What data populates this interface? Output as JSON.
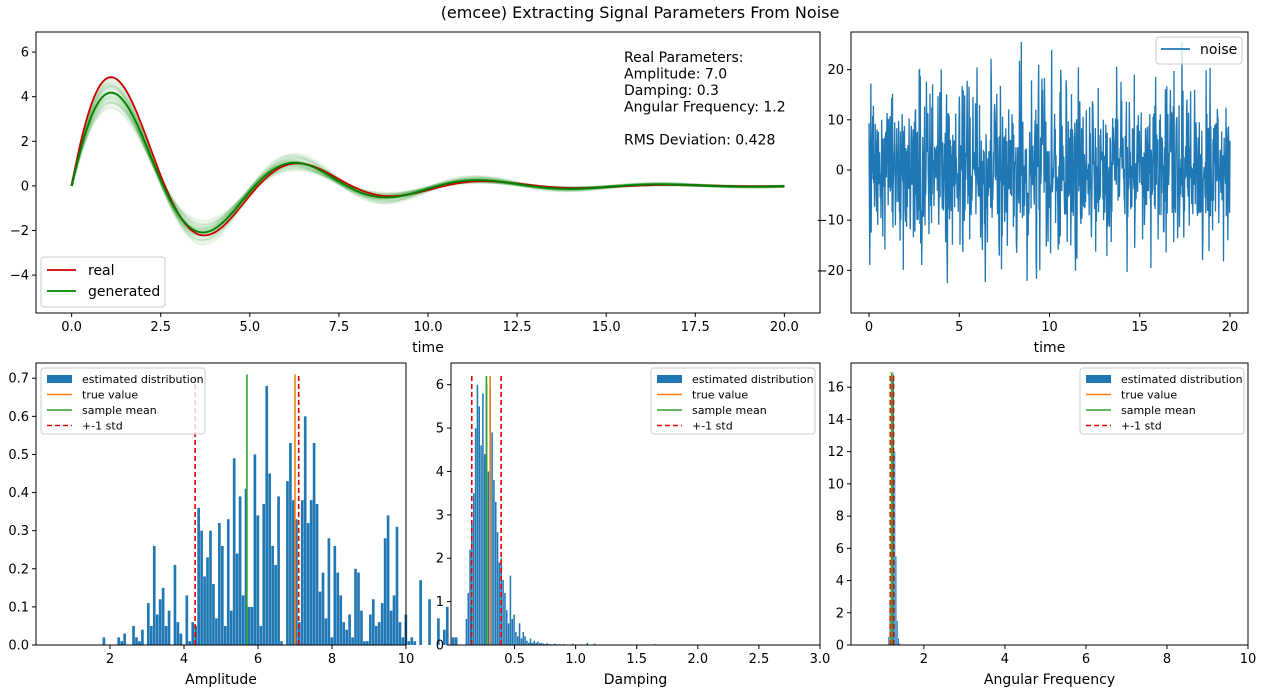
{
  "figure": {
    "suptitle": "(emcee) Extracting Signal Parameters From Noise",
    "colors": {
      "blue": "#1f77b4",
      "orange": "#ff7f0e",
      "green_c2": "#2ca02c",
      "red": "#d62728",
      "real_line": "#cc0000",
      "generated_line": "#008000",
      "std_line": "#e00000"
    }
  },
  "chart_data": [
    {
      "type": "line",
      "xlabel": "time",
      "ylabel": "",
      "xlim": [
        -1,
        21
      ],
      "ylim": [
        -5.7,
        6.9
      ],
      "xticks": [
        0,
        2.5,
        5,
        7.5,
        10,
        12.5,
        15,
        17.5,
        20
      ],
      "xtick_labels": [
        "0.0",
        "2.5",
        "5.0",
        "7.5",
        "10.0",
        "12.5",
        "15.0",
        "17.5",
        "20.0"
      ],
      "yticks": [
        -4,
        -2,
        0,
        2,
        4,
        6
      ],
      "ytick_labels": [
        "−4",
        "−2",
        "0",
        "2",
        "4",
        "6"
      ],
      "legend_position": "lower-left",
      "series": [
        {
          "name": "real",
          "model": "damped_sine",
          "amplitude": 7.0,
          "damping": 0.3,
          "angular_frequency": 1.2,
          "color": "#cc0000"
        },
        {
          "name": "generated",
          "model": "damped_sine",
          "amplitude": 5.78,
          "damping": 0.27,
          "angular_frequency": 1.22,
          "color": "#008000"
        }
      ],
      "posterior_sample_band": {
        "color": "#008000",
        "sample_count": 40
      },
      "annotation_lines": [
        "Real Parameters:",
        "Amplitude: 7.0",
        "Damping: 0.3",
        "Angular Frequency: 1.2",
        "",
        "RMS Deviation: 0.428"
      ]
    },
    {
      "type": "line",
      "xlabel": "time",
      "ylabel": "",
      "xlim": [
        -1,
        21
      ],
      "ylim": [
        -28.5,
        27.5
      ],
      "xticks": [
        0,
        5,
        10,
        15,
        20
      ],
      "xtick_labels": [
        "0",
        "5",
        "10",
        "15",
        "20"
      ],
      "yticks": [
        -20,
        -10,
        0,
        10,
        20
      ],
      "ytick_labels": [
        "−20",
        "−10",
        "0",
        "10",
        "20"
      ],
      "legend_position": "upper-right",
      "series": [
        {
          "name": "noise",
          "color": "#1f77b4",
          "x_range": [
            0,
            20
          ],
          "approx_std": 8.5,
          "y_range": [
            -26,
            25.5
          ]
        }
      ]
    },
    {
      "type": "bar",
      "xlabel": "Amplitude",
      "ylabel": "",
      "xlim": [
        0,
        10
      ],
      "ylim": [
        0,
        0.74
      ],
      "xticks": [
        2,
        4,
        6,
        8,
        10
      ],
      "xtick_labels": [
        "2",
        "4",
        "6",
        "8",
        "10"
      ],
      "yticks": [
        0,
        0.1,
        0.2,
        0.3,
        0.4,
        0.5,
        0.6,
        0.7
      ],
      "ytick_labels": [
        "0.0",
        "0.1",
        "0.2",
        "0.3",
        "0.4",
        "0.5",
        "0.6",
        "0.7"
      ],
      "legend_position": "upper-left",
      "legend_entries": [
        "estimated distribution",
        "true value",
        "sample mean",
        "+-1 std"
      ],
      "true_value": 7.0,
      "sample_mean": 5.7,
      "std_lines": [
        4.3,
        7.1
      ],
      "marker_height": 0.71,
      "histogram": {
        "x_start": 1.8,
        "bin_width": 0.08,
        "values": [
          0.02,
          0.0,
          0.0,
          0.0,
          0.0,
          0.02,
          0.01,
          0.03,
          0.0,
          0.0,
          0.05,
          0.02,
          0.01,
          0.04,
          0.0,
          0.11,
          0.05,
          0.26,
          0.08,
          0.12,
          0.15,
          0.05,
          0.09,
          0.0,
          0.21,
          0.06,
          0.03,
          0.0,
          0.13,
          0.01,
          0.06,
          0.05,
          0.36,
          0.3,
          0.18,
          0.23,
          0.3,
          0.16,
          0.07,
          0.32,
          0.26,
          0.05,
          0.33,
          0.09,
          0.49,
          0.24,
          0.39,
          0.13,
          0.41,
          0.1,
          0.1,
          0.5,
          0.34,
          0.05,
          0.37,
          0.68,
          0.45,
          0.26,
          0.21,
          0.39,
          0.01,
          0.0,
          0.43,
          0.53,
          0.38,
          0.33,
          0.06,
          0.38,
          0.6,
          0.32,
          0.38,
          0.53,
          0.37,
          0.14,
          0.19,
          0.07,
          0.28,
          0.02,
          0.26,
          0.19,
          0.13,
          0.06,
          0.04,
          0.08,
          0.02,
          0.2,
          0.19,
          0.09,
          0.01,
          0.01,
          0.08,
          0.12,
          0.05,
          0.06,
          0.11,
          0.28,
          0.34,
          0.09,
          0.13,
          0.31,
          0.06,
          0.02,
          0.08,
          0.01,
          0.02,
          0.01,
          0.0,
          0.17,
          0.0,
          0.0,
          0.12,
          0.0,
          0.0,
          0.07,
          0.0,
          0.04,
          0.1,
          0.0,
          0.02,
          0.02,
          0.0,
          0.0,
          0.0,
          0.0,
          0.1
        ]
      }
    },
    {
      "type": "bar",
      "xlabel": "Damping",
      "ylabel": "",
      "xlim": [
        -0.02,
        3.0
      ],
      "ylim": [
        0,
        6.5
      ],
      "xticks": [
        0.5,
        1.0,
        1.5,
        2.0,
        2.5,
        3.0
      ],
      "xtick_labels": [
        "0.5",
        "1.0",
        "1.5",
        "2.0",
        "2.5",
        "3.0"
      ],
      "yticks": [
        0,
        1,
        2,
        3,
        4,
        5,
        6
      ],
      "ytick_labels": [
        "0",
        "1",
        "2",
        "3",
        "4",
        "5",
        "6"
      ],
      "legend_position": "upper-right",
      "legend_entries": [
        "estimated distribution",
        "true value",
        "sample mean",
        "+-1 std"
      ],
      "true_value": 0.3,
      "sample_mean": 0.27,
      "std_lines": [
        0.15,
        0.39
      ],
      "marker_height": 6.2,
      "histogram": {
        "x_start": 0.1,
        "bin_width": 0.015,
        "values": [
          0.6,
          1.2,
          2.2,
          2.8,
          3.5,
          5.0,
          6.0,
          5.5,
          4.6,
          5.8,
          4.4,
          6.0,
          4.0,
          5.9,
          4.9,
          3.8,
          3.3,
          2.6,
          1.9,
          2.0,
          1.5,
          1.2,
          0.8,
          0.5,
          1.6,
          0.6,
          0.7,
          0.3,
          0.2,
          0.5,
          0.15,
          0.3,
          0.2,
          0.1,
          0.05,
          0.15,
          0.05,
          0.1,
          0.05,
          0.08,
          0.04,
          0.05,
          0.03,
          0.02,
          0.04,
          0.02,
          0.02,
          0.0,
          0.03,
          0.02,
          0.0,
          0.02,
          0.01,
          0.02,
          0.0,
          0.01,
          0.0,
          0.0,
          0.03,
          0.0,
          0.0,
          0.0,
          0.0,
          0.0,
          0.0,
          0.0,
          0.05,
          0.0,
          0.0,
          0.0,
          0.03,
          0.0,
          0.0,
          0.0,
          0.0,
          0.0,
          0.0,
          0.0,
          0.0,
          0.0,
          0.0,
          0.0,
          0.0,
          0.0,
          0.0,
          0.0,
          0.0,
          0.0,
          0.0,
          0.0,
          0.0,
          0.0,
          0.0,
          0.0,
          0.0,
          0.0,
          0.0,
          0.0,
          0.0,
          0.0,
          0.0,
          0.0,
          0.0,
          0.02
        ]
      }
    },
    {
      "type": "bar",
      "xlabel": "Angular Frequency",
      "ylabel": "",
      "xlim": [
        0.2,
        10
      ],
      "ylim": [
        0,
        17.5
      ],
      "xticks": [
        2,
        4,
        6,
        8,
        10
      ],
      "xtick_labels": [
        "2",
        "4",
        "6",
        "8",
        "10"
      ],
      "yticks": [
        0,
        2,
        4,
        6,
        8,
        10,
        12,
        14,
        16
      ],
      "ytick_labels": [
        "0",
        "2",
        "4",
        "6",
        "8",
        "10",
        "12",
        "14",
        "16"
      ],
      "legend_position": "upper-right",
      "legend_entries": [
        "estimated distribution",
        "true value",
        "sample mean",
        "+-1 std"
      ],
      "true_value": 1.2,
      "sample_mean": 1.21,
      "std_lines": [
        1.17,
        1.25
      ],
      "marker_height": 16.9,
      "histogram": {
        "x_start": 1.12,
        "bin_width": 0.03,
        "values": [
          0.5,
          2.5,
          8.0,
          16.5,
          16.8,
          12.0,
          5.5,
          1.5,
          0.4,
          0.1
        ]
      }
    }
  ],
  "legend_labels": {
    "real": "real",
    "generated": "generated",
    "noise": "noise",
    "estimated_distribution": "estimated distribution",
    "true_value": "true value",
    "sample_mean": "sample mean",
    "std": "+-1 std"
  }
}
